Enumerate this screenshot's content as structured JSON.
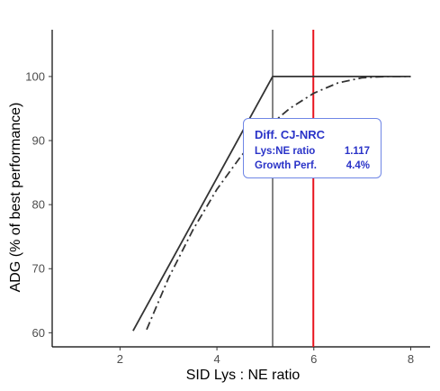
{
  "chart_data": {
    "type": "line",
    "xlabel": "SID Lys : NE ratio",
    "ylabel": "ADG (% of best performance)",
    "xlim": [
      0.6,
      8.4
    ],
    "ylim": [
      57.8,
      107.3
    ],
    "x_ticks": [
      2,
      4,
      6,
      8
    ],
    "y_ticks": [
      60,
      70,
      80,
      90,
      100
    ],
    "grid": false,
    "series": [
      {
        "style": "solid",
        "color": "#333333",
        "points": [
          [
            2.27,
            60.3
          ],
          [
            5.15,
            100
          ],
          [
            8.0,
            100
          ]
        ]
      },
      {
        "style": "dashdot",
        "color": "#333333",
        "points": [
          [
            2.55,
            60.5
          ],
          [
            3.0,
            68.5
          ],
          [
            3.5,
            76.0
          ],
          [
            4.0,
            82.4
          ],
          [
            4.5,
            87.6
          ],
          [
            5.0,
            91.8
          ],
          [
            5.5,
            95.0
          ],
          [
            6.0,
            97.4
          ],
          [
            6.5,
            99.0
          ],
          [
            7.0,
            99.8
          ],
          [
            7.5,
            100.0
          ],
          [
            8.0,
            100.0
          ]
        ]
      }
    ],
    "reference_lines": [
      {
        "x": 5.15,
        "color": "#333333"
      },
      {
        "x": 5.99,
        "color": "#e8141e"
      }
    ],
    "annotation": {
      "title": "Diff. CJ-NRC",
      "rows": [
        {
          "label": "Lys:NE ratio",
          "value": "1.117"
        },
        {
          "label": "Growth Perf.",
          "value": "4.4%"
        }
      ]
    }
  }
}
